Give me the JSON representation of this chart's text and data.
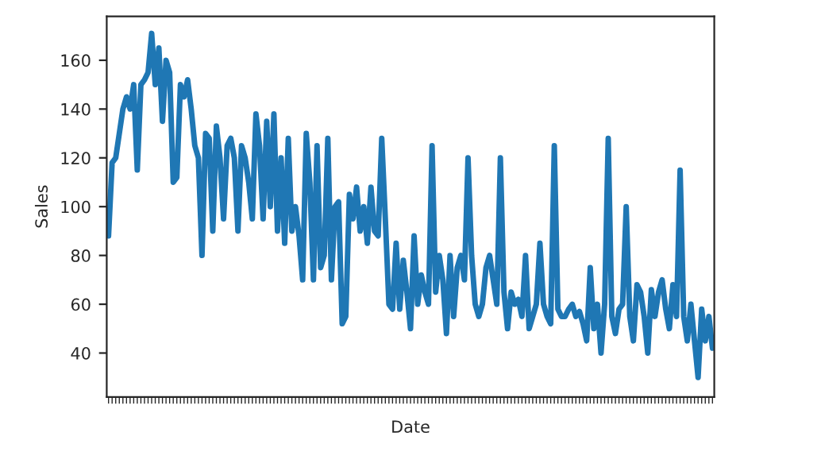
{
  "chart_data": {
    "type": "line",
    "xlabel": "Date",
    "ylabel": "Sales",
    "categories": [
      null,
      null,
      null,
      null,
      null,
      null,
      null,
      null,
      null,
      null,
      null,
      null,
      null,
      null,
      null,
      null,
      null,
      null,
      null,
      null,
      null,
      null,
      null,
      null,
      null,
      null,
      null,
      null,
      null,
      null,
      null,
      null,
      null,
      null,
      null,
      null,
      null,
      null,
      null,
      null,
      null,
      null,
      null,
      null,
      null,
      null,
      null,
      null,
      null,
      null,
      null,
      null,
      null,
      null,
      null,
      null,
      null,
      null,
      null,
      null,
      null,
      null,
      null,
      null,
      null,
      null,
      null,
      null,
      null,
      null,
      null,
      null,
      null,
      null,
      null,
      null,
      null,
      null,
      null,
      null,
      null,
      null,
      null,
      null,
      null,
      null,
      null,
      null,
      null,
      null,
      null,
      null,
      null,
      null,
      null,
      null,
      null,
      null,
      null,
      null,
      null,
      null,
      null,
      null,
      null,
      null,
      null,
      null,
      null,
      null,
      null,
      null,
      null,
      null,
      null,
      null,
      null,
      null,
      null,
      null,
      null,
      null,
      null,
      null,
      null,
      null,
      null,
      null,
      null,
      null,
      null,
      null,
      null,
      null,
      null,
      null,
      null,
      null,
      null,
      null,
      null,
      null,
      null,
      null,
      null,
      null,
      null,
      null,
      null,
      null,
      null,
      null,
      null,
      null,
      null,
      null,
      null,
      null,
      null,
      null,
      null,
      null,
      null,
      null,
      null,
      null,
      null,
      null,
      null
    ],
    "series": [
      {
        "color": "#1f77b4",
        "values": [
          88,
          118,
          120,
          130,
          140,
          145,
          140,
          150,
          115,
          150,
          152,
          155,
          171,
          150,
          165,
          135,
          160,
          155,
          110,
          112,
          150,
          145,
          152,
          140,
          125,
          120,
          80,
          130,
          128,
          90,
          133,
          120,
          95,
          125,
          128,
          120,
          90,
          125,
          120,
          110,
          95,
          138,
          125,
          95,
          135,
          100,
          138,
          90,
          120,
          85,
          128,
          90,
          100,
          88,
          70,
          130,
          110,
          70,
          125,
          75,
          80,
          128,
          70,
          100,
          102,
          52,
          55,
          105,
          95,
          108,
          90,
          100,
          85,
          108,
          90,
          88,
          128,
          95,
          60,
          58,
          85,
          58,
          78,
          65,
          50,
          88,
          60,
          72,
          65,
          60,
          125,
          65,
          80,
          70,
          48,
          80,
          55,
          75,
          80,
          70,
          120,
          80,
          60,
          55,
          60,
          75,
          80,
          70,
          60,
          120,
          65,
          50,
          65,
          60,
          62,
          55,
          80,
          50,
          55,
          60,
          85,
          60,
          55,
          52,
          125,
          58,
          55,
          55,
          58,
          60,
          55,
          57,
          52,
          45,
          75,
          50,
          60,
          40,
          60,
          128,
          55,
          48,
          58,
          60,
          100,
          55,
          45,
          68,
          65,
          55,
          40,
          66,
          55,
          65,
          70,
          58,
          50,
          68,
          55,
          115,
          55,
          45,
          60,
          45,
          30,
          58,
          45,
          55,
          42
        ]
      }
    ],
    "ylim": [
      22,
      178
    ],
    "yticks": [
      40,
      60,
      80,
      100,
      120,
      140,
      160
    ],
    "grid": false,
    "marker": "none",
    "line_style": "solid"
  }
}
